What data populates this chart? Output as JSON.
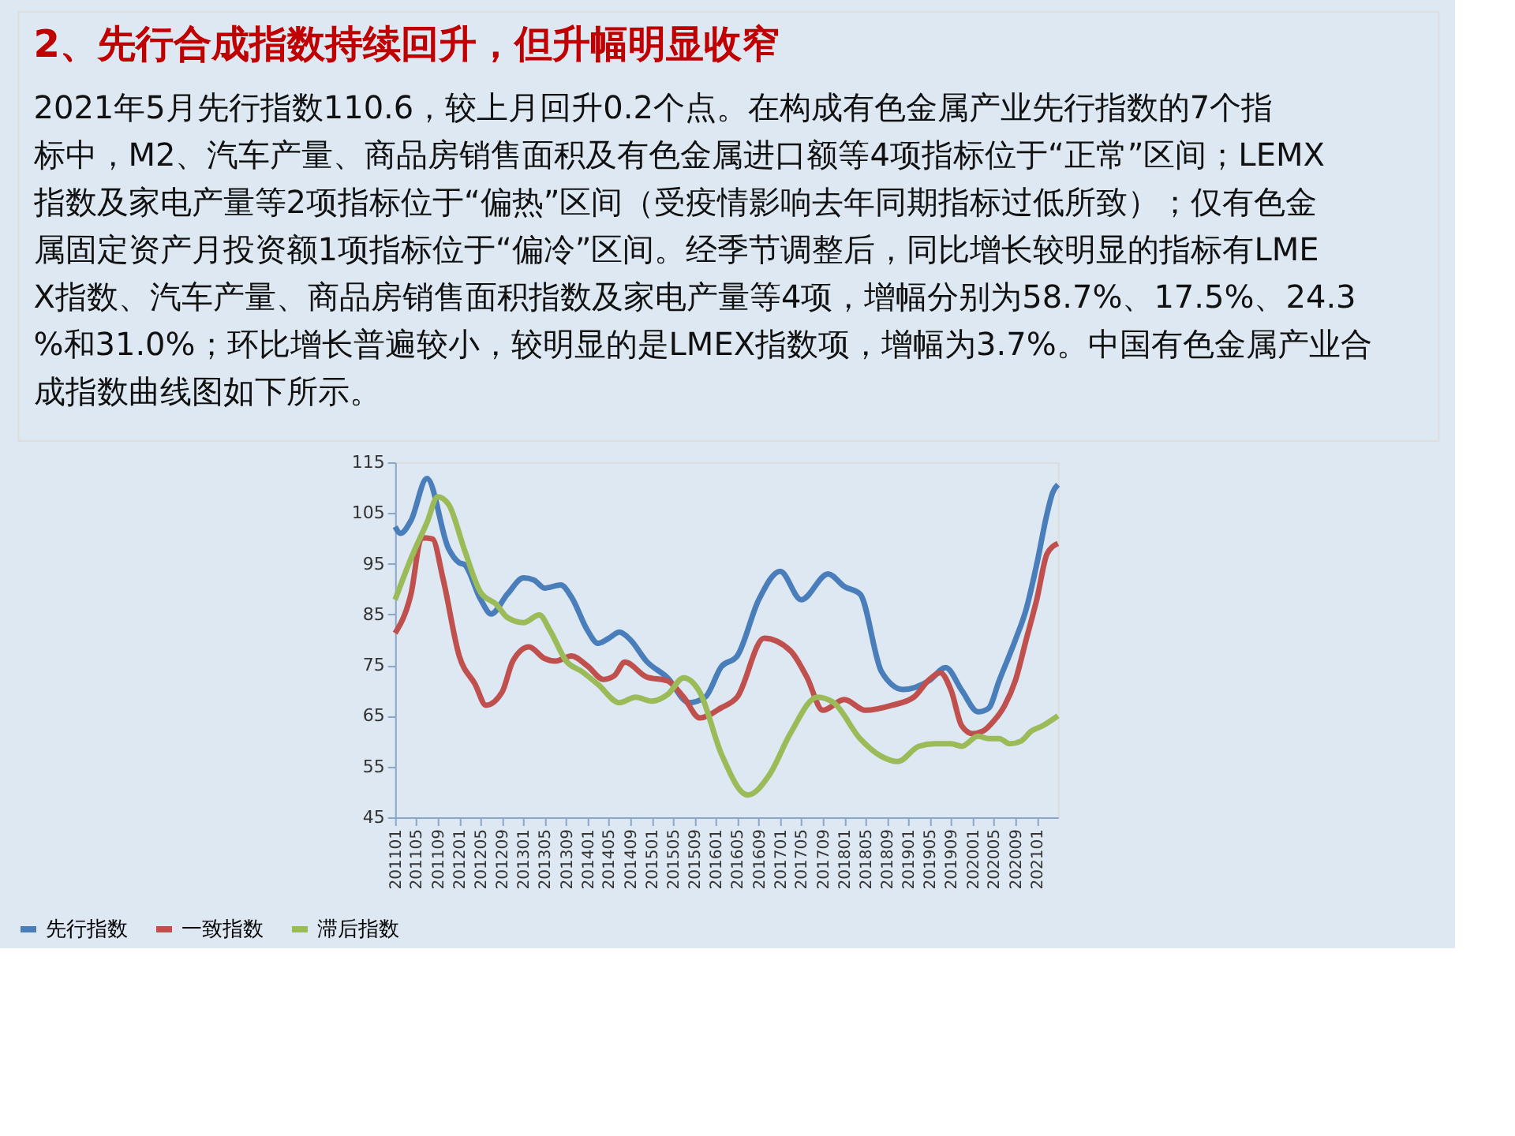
{
  "chart_data": {
    "type": "line",
    "title": "2、先行合成指数持续回升，但升幅明显收窄",
    "annotations": [
      "　　2021年5月先行指数110.6，较上月回升0.2个点。在构成有色金属产业先行指数的7个指标中，M2、汽车产量、商品房销售面积及有色金属进口额等4项指标位于“正常”区间；LEMX指数及家电产量等2项指标位于“偏热”区间（受疫情影响去年同期指标过低所致）；仅有色金属固定资产月投资额1项指标位于“偏冷”区间。经季节调整后，同比增长较明显的指标有LMEX指数、汽车产量、商品房销售面积指数及家电产量等4项，增幅分别为58.7%、17.5%、24.3%和31.0%；环比增长普遍较小，较明显的是LMEX指数项，增幅为3.7%。中国有色金属产业合成指数曲线图如下所示。"
    ],
    "series": [
      {
        "name": "先行指数",
        "color": "#4a7ebb",
        "x": [
          "2011-01",
          "2011-02",
          "2011-04",
          "2011-07",
          "2011-11",
          "2012-01",
          "2012-02",
          "2012-05",
          "2012-07",
          "2012-10",
          "2013-01",
          "2013-03",
          "2013-05",
          "2013-08",
          "2013-10",
          "2014-01",
          "2014-03",
          "2014-05",
          "2014-07",
          "2014-09",
          "2014-12",
          "2015-04",
          "2015-08",
          "2015-11",
          "2016-02",
          "2016-05",
          "2016-09",
          "2017-01",
          "2017-05",
          "2017-10",
          "2018-01",
          "2018-04",
          "2018-08",
          "2018-12",
          "2019-05",
          "2019-08",
          "2019-11",
          "2020-02",
          "2020-04",
          "2020-06",
          "2020-09",
          "2020-11",
          "2021-01",
          "2021-03",
          "2021-04",
          "2021-05"
        ],
        "values": [
          102.3,
          101,
          103.5,
          111.8,
          98,
          95.2,
          94.8,
          88,
          85.1,
          89,
          92.2,
          91.8,
          90.2,
          90.8,
          88.4,
          81.8,
          79.3,
          80.3,
          81.5,
          80,
          75.8,
          72.5,
          67.6,
          68.7,
          74.7,
          76.8,
          87.9,
          93.5,
          87.9,
          93,
          90.5,
          89,
          73.7,
          70.2,
          72,
          74.5,
          70,
          65.8,
          66.5,
          72,
          80,
          86,
          95,
          105,
          109,
          110.6
        ]
      },
      {
        "name": "一致指数",
        "color": "#c0504d",
        "x": [
          "2011-01",
          "2011-04",
          "2011-06",
          "2011-08",
          "2011-10",
          "2012-01",
          "2012-04",
          "2012-06",
          "2012-09",
          "2012-11",
          "2013-02",
          "2013-05",
          "2013-07",
          "2013-10",
          "2014-01",
          "2014-04",
          "2014-06",
          "2014-08",
          "2014-12",
          "2015-04",
          "2015-07",
          "2015-10",
          "2016-02",
          "2016-05",
          "2016-10",
          "2017-03",
          "2017-06",
          "2017-09",
          "2018-01",
          "2018-05",
          "2018-10",
          "2019-02",
          "2019-05",
          "2019-07",
          "2019-09",
          "2019-11",
          "2020-01",
          "2020-03",
          "2020-05",
          "2020-07",
          "2020-09",
          "2020-11",
          "2021-01",
          "2021-03",
          "2021-05"
        ],
        "values": [
          81.3,
          89,
          100.1,
          99.9,
          92,
          76.8,
          71.2,
          67.1,
          69.7,
          75.8,
          78.6,
          76.3,
          75.8,
          76.8,
          74.8,
          72.2,
          72.9,
          75.6,
          72.7,
          71.9,
          68.7,
          64.6,
          66.6,
          68.7,
          80.3,
          77.8,
          72.7,
          66.1,
          68.2,
          66.1,
          67.1,
          68.7,
          72.2,
          73.5,
          70,
          63,
          61.5,
          62,
          64,
          67,
          72,
          80,
          88,
          97,
          99
        ]
      },
      {
        "name": "滞后指数",
        "color": "#9bbb59",
        "x": [
          "2011-01",
          "2011-04",
          "2011-07",
          "2011-09",
          "2011-11",
          "2012-02",
          "2012-05",
          "2012-08",
          "2012-10",
          "2013-01",
          "2013-04",
          "2013-06",
          "2013-09",
          "2013-12",
          "2014-03",
          "2014-07",
          "2014-10",
          "2015-01",
          "2015-04",
          "2015-07",
          "2015-10",
          "2016-02",
          "2016-07",
          "2016-11",
          "2017-03",
          "2017-08",
          "2017-11",
          "2018-04",
          "2018-08",
          "2018-11",
          "2019-03",
          "2019-06",
          "2019-09",
          "2019-11",
          "2020-02",
          "2020-04",
          "2020-06",
          "2020-08",
          "2020-10",
          "2020-12",
          "2021-02",
          "2021-05"
        ],
        "values": [
          87.9,
          96,
          103.1,
          108.2,
          106.7,
          97.6,
          89.4,
          86.9,
          84.4,
          83.4,
          84.9,
          81.8,
          75.8,
          73.7,
          71.2,
          67.6,
          68.7,
          67.9,
          69.2,
          72.5,
          69.7,
          57.5,
          49.4,
          53.4,
          61.6,
          68.7,
          67.6,
          60.5,
          57,
          56,
          59,
          59.5,
          59.5,
          59,
          61,
          60.5,
          60.5,
          59.5,
          60,
          62,
          63,
          65
        ]
      }
    ],
    "xlim": [
      "2011-01",
      "2021-05"
    ],
    "xticks": [
      {
        "value": "2011-01",
        "label": "201101"
      },
      {
        "value": "2011-05",
        "label": "201105"
      },
      {
        "value": "2011-09",
        "label": "201109"
      },
      {
        "value": "2012-01",
        "label": "201201"
      },
      {
        "value": "2012-05",
        "label": "201205"
      },
      {
        "value": "2012-09",
        "label": "201209"
      },
      {
        "value": "2013-01",
        "label": "201301"
      },
      {
        "value": "2013-05",
        "label": "201305"
      },
      {
        "value": "2013-09",
        "label": "201309"
      },
      {
        "value": "2014-01",
        "label": "201401"
      },
      {
        "value": "2014-05",
        "label": "201405"
      },
      {
        "value": "2014-09",
        "label": "201409"
      },
      {
        "value": "2015-01",
        "label": "201501"
      },
      {
        "value": "2015-05",
        "label": "201505"
      },
      {
        "value": "2015-09",
        "label": "201509"
      },
      {
        "value": "2016-01",
        "label": "201601"
      },
      {
        "value": "2016-05",
        "label": "201605"
      },
      {
        "value": "2016-09",
        "label": "201609"
      },
      {
        "value": "2017-01",
        "label": "201701"
      },
      {
        "value": "2017-05",
        "label": "201705"
      },
      {
        "value": "2017-09",
        "label": "201709"
      },
      {
        "value": "2018-01",
        "label": "201801"
      },
      {
        "value": "2018-05",
        "label": "201805"
      },
      {
        "value": "2018-09",
        "label": "201809"
      },
      {
        "value": "2019-01",
        "label": "201901"
      },
      {
        "value": "2019-05",
        "label": "201905"
      },
      {
        "value": "2019-09",
        "label": "201909"
      },
      {
        "value": "2020-01",
        "label": "202001"
      },
      {
        "value": "2020-05",
        "label": "202005"
      },
      {
        "value": "2020-09",
        "label": "202009"
      },
      {
        "value": "2021-01",
        "label": "202101"
      }
    ],
    "ylim": [
      45,
      115
    ],
    "yticks": [
      45,
      55,
      65,
      75,
      85,
      95,
      105,
      115
    ],
    "grid": false,
    "legend": "bottom",
    "marker": "none",
    "line_style": "solid"
  }
}
